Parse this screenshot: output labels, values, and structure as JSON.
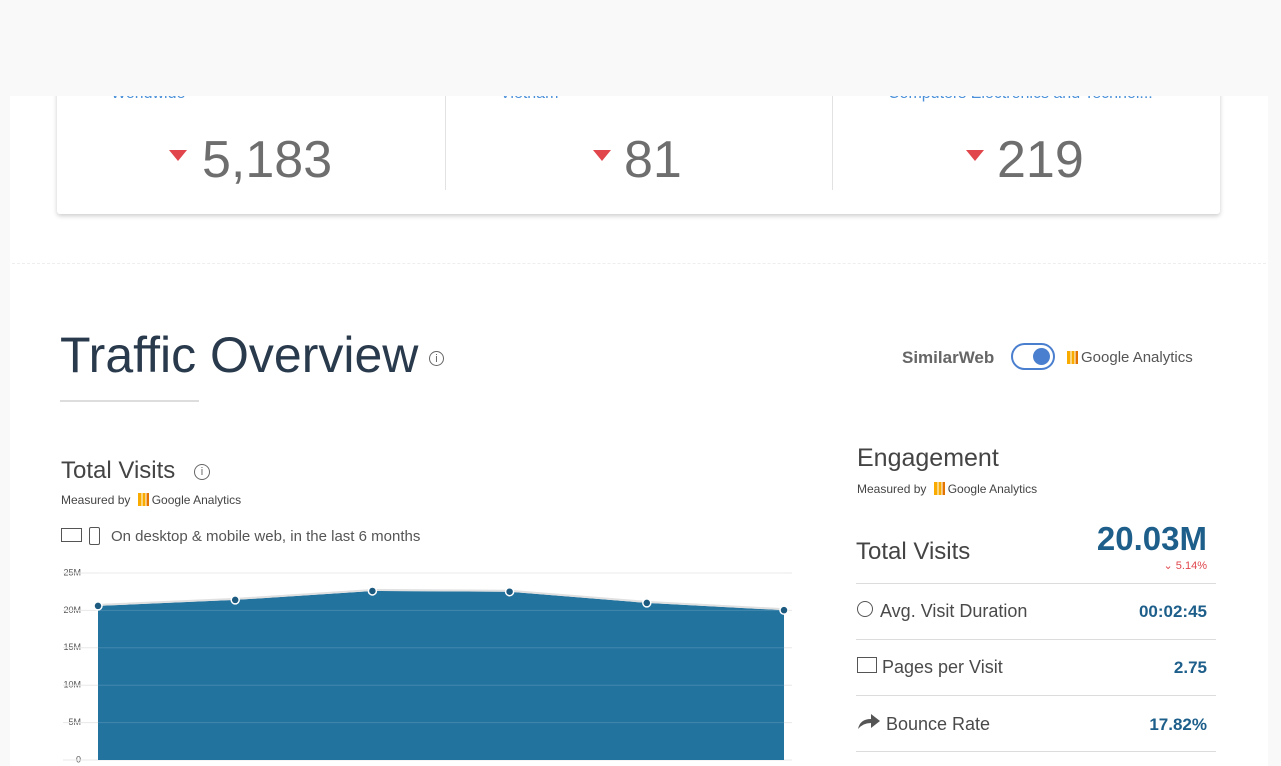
{
  "ranks": [
    {
      "label": "Worldwide",
      "value": "5,183"
    },
    {
      "label": "Vietnam",
      "value": "81"
    },
    {
      "label": "Computers Electronics and Technol...",
      "value": "219"
    }
  ],
  "section": {
    "title": "Traffic Overview",
    "source_left": "SimilarWeb",
    "source_right": "Google Analytics"
  },
  "total_visits": {
    "title": "Total Visits",
    "measured_by": "Measured by",
    "provider": "Google Analytics",
    "note": "On desktop & mobile web, in the last 6 months"
  },
  "chart_data": {
    "type": "area",
    "categories": [
      null,
      null,
      null,
      null,
      null,
      null
    ],
    "values": [
      20600000,
      21400000,
      22600000,
      22500000,
      21000000,
      20030000
    ],
    "color": "#23739f",
    "ylim": [
      0,
      25000000
    ],
    "yticks": [
      0,
      {
        "value": 5000000,
        "label": "5M"
      },
      {
        "value": 10000000,
        "label": "10M"
      },
      {
        "value": 15000000,
        "label": "15M"
      },
      {
        "value": 20000000,
        "label": "20M"
      },
      {
        "value": 25000000,
        "label": "25M"
      }
    ],
    "grid": true
  },
  "engagement": {
    "title": "Engagement",
    "measured_by": "Measured by",
    "provider": "Google Analytics",
    "total_label": "Total Visits",
    "total_value": "20.03M",
    "change": "5.14%",
    "rows": [
      {
        "label": "Avg. Visit Duration",
        "value": "00:02:45"
      },
      {
        "label": "Pages per Visit",
        "value": "2.75"
      },
      {
        "label": "Bounce Rate",
        "value": "17.82%"
      }
    ]
  }
}
